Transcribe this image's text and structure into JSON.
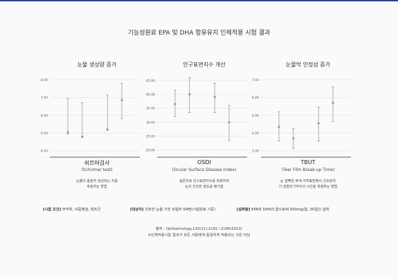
{
  "header": {
    "title": "기능성원료 EPA 및 DHA 함유유지 인체적용 시험 결과"
  },
  "colors": {
    "accent_bar": "#2f3f8f",
    "series": "#9a9a9a",
    "grid": "#e6e6e6"
  },
  "chart_data": [
    {
      "type": "scatter",
      "title": "눈물 생성량 증가",
      "xlabel": "쉬르머검사",
      "xlabel_sub": "(Schirmer test)",
      "description": [
        "눈물이 충분히 생성되는 지를",
        "측정하는 방법"
      ],
      "yticks": [
        "8.00",
        "7.00",
        "6.00",
        "5.00",
        "4.00"
      ],
      "ylim": [
        3.8,
        8.2
      ],
      "grid": true,
      "points": [
        {
          "y": 5.05,
          "low": 4.95,
          "high": 6.95
        },
        {
          "y": 4.8,
          "low": 4.75,
          "high": 6.7
        },
        {
          "y": 5.2,
          "low": 5.15,
          "high": 7.15
        },
        {
          "y": 6.85,
          "low": 5.8,
          "high": 7.8
        }
      ]
    },
    {
      "type": "scatter",
      "title": "안구표면지수 개선",
      "xlabel": "OSDI",
      "xlabel_sub": "(Ocular Surface Disease Index)",
      "description": [
        "설문지로 안구표면지수를 측정하여",
        "눈의 건조한 정도를 평가함"
      ],
      "yticks": [
        "45.00",
        "40.00",
        "35.00",
        "30.00",
        "25.00",
        "20.00"
      ],
      "ylim": [
        18.5,
        46.5
      ],
      "grid": true,
      "points": [
        {
          "y": 36.5,
          "low": 32.0,
          "high": 41.5
        },
        {
          "y": 40.0,
          "low": 33.5,
          "high": 46.0
        },
        {
          "y": 39.0,
          "low": 33.5,
          "high": 44.0
        },
        {
          "y": 30.0,
          "low": 23.5,
          "high": 36.0
        }
      ]
    },
    {
      "type": "scatter",
      "title": "눈물막 안정성 증가",
      "xlabel": "TBUT",
      "xlabel_sub": "(Tear Film Break-up Time)",
      "description": [
        "눈 깜빡임 후에 각막표면에서 건조분위",
        "가 관찰되기까지의 시간을 측정하는 방법"
      ],
      "yticks": [
        "7.00",
        "6.00",
        "5.00",
        "4.00",
        "3.00"
      ],
      "ylim": [
        2.8,
        7.2
      ],
      "grid": true,
      "points": [
        {
          "y": 4.35,
          "low": 3.55,
          "high": 5.2
        },
        {
          "y": 3.7,
          "low": 3.15,
          "high": 4.25
        },
        {
          "y": 4.55,
          "low": 3.55,
          "high": 5.45
        },
        {
          "y": 5.7,
          "low": 4.65,
          "high": 6.6
        }
      ]
    }
  ],
  "conditions": [
    {
      "label": "[시험 조건]",
      "text": "무작위, 이중맹검, 대조군"
    },
    {
      "label": "[대상자]",
      "text": "건조한 눈을 가진 피험자 64명(시험완료 기준)"
    },
    {
      "label": "[섭취량]",
      "text": "EPA와 DHA의 합으로써 600mg/일, 30일간 섭취"
    }
  ],
  "source": {
    "citation": "출처 : Ophtalmology.120(11):2191~2196(2013)",
    "note": "※인체적용시험 결과가 모든 사람에게 동일하게 적용되는 것은 아님"
  }
}
